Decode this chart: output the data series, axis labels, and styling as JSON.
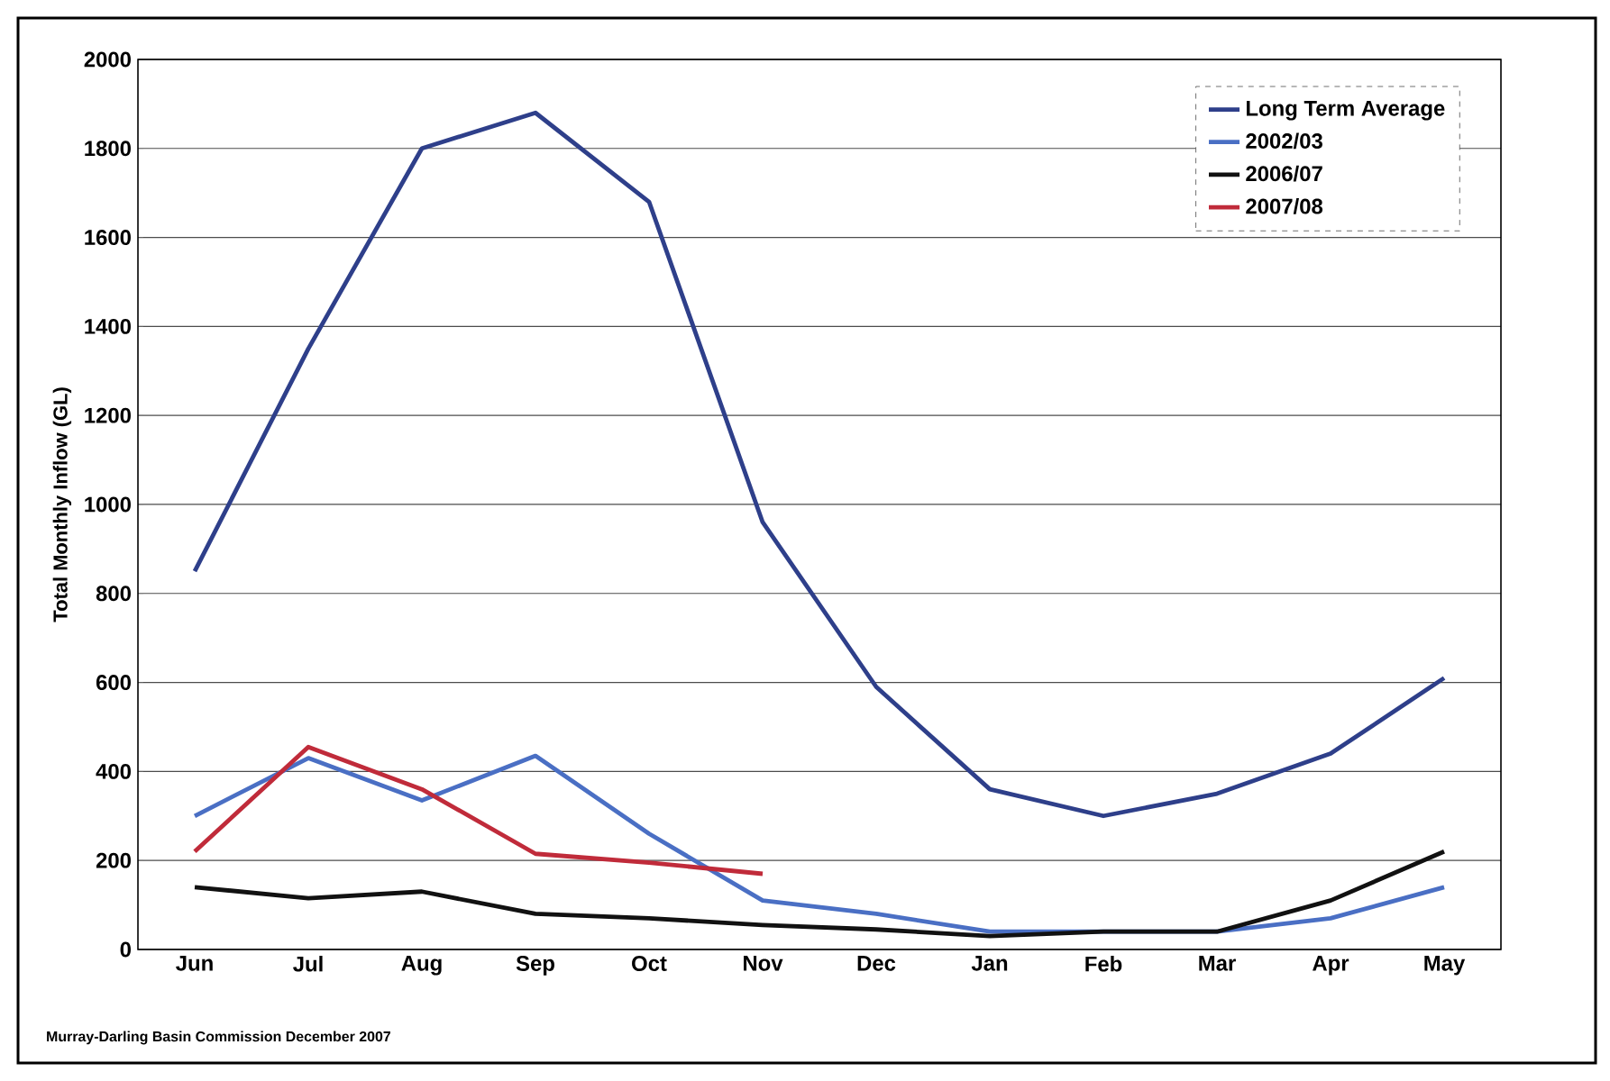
{
  "chart_data": {
    "type": "line",
    "ylabel": "Total Monthly Inflow (GL)",
    "categories": [
      "Jun",
      "Jul",
      "Aug",
      "Sep",
      "Oct",
      "Nov",
      "Dec",
      "Jan",
      "Feb",
      "Mar",
      "Apr",
      "May"
    ],
    "series": [
      {
        "name": "Long Term Average",
        "color": "#2e3f8a",
        "values": [
          850,
          1350,
          1800,
          1880,
          1680,
          960,
          590,
          360,
          300,
          350,
          440,
          610
        ]
      },
      {
        "name": "2002/03",
        "color": "#4a6fc4",
        "values": [
          300,
          430,
          335,
          435,
          260,
          110,
          80,
          40,
          40,
          40,
          70,
          140
        ]
      },
      {
        "name": "2006/07",
        "color": "#111111",
        "values": [
          140,
          115,
          130,
          80,
          70,
          55,
          45,
          30,
          40,
          40,
          110,
          220
        ]
      },
      {
        "name": "2007/08",
        "color": "#c02b3a",
        "values": [
          220,
          455,
          360,
          215,
          195,
          170,
          null,
          null,
          null,
          null,
          null,
          null
        ]
      }
    ],
    "ylim": [
      0,
      2000
    ],
    "yticks": [
      0,
      200,
      400,
      600,
      800,
      1000,
      1200,
      1400,
      1600,
      1800,
      2000
    ],
    "grid": "y",
    "legend": "top right",
    "marker": "none",
    "line_style": "solid",
    "annotations": [
      "Murray-Darling Basin Commission December 2007"
    ]
  }
}
